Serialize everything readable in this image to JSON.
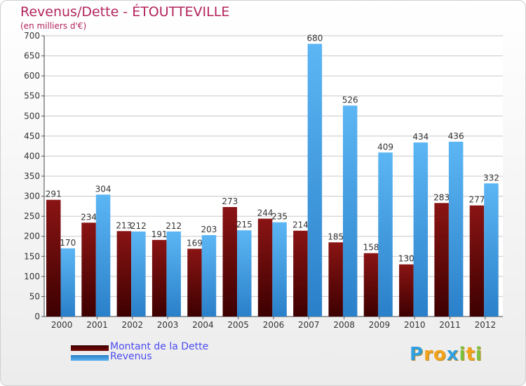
{
  "chart_data": {
    "type": "bar",
    "title": "Revenus/Dette - ÉTOUTTEVILLE",
    "subtitle": "(en milliers d'€)",
    "categories": [
      "2000",
      "2001",
      "2002",
      "2003",
      "2004",
      "2005",
      "2006",
      "2007",
      "2008",
      "2009",
      "2010",
      "2011",
      "2012"
    ],
    "series": [
      {
        "name": "Montant de la Dette",
        "color": "#7a0a0a",
        "values": [
          291,
          234,
          213,
          191,
          169,
          273,
          244,
          214,
          185,
          158,
          130,
          283,
          277
        ]
      },
      {
        "name": "Revenus",
        "color": "#3f9fe6",
        "values": [
          170,
          304,
          212,
          212,
          203,
          215,
          235,
          680,
          526,
          409,
          434,
          436,
          332
        ]
      }
    ],
    "ylim": [
      0,
      700
    ],
    "yticks": [
      0,
      50,
      100,
      150,
      200,
      250,
      300,
      350,
      400,
      450,
      500,
      550,
      600,
      650,
      700
    ],
    "grid": true,
    "legend_position": "bottom-left"
  },
  "logo": {
    "letters": [
      "P",
      "r",
      "o",
      "x",
      "i",
      "t",
      "i"
    ],
    "colors": [
      "#2e9fe0",
      "#f2a21b",
      "#f2a21b",
      "#2e9fe0",
      "#7bc242",
      "#f2a21b",
      "#7bc242"
    ]
  }
}
